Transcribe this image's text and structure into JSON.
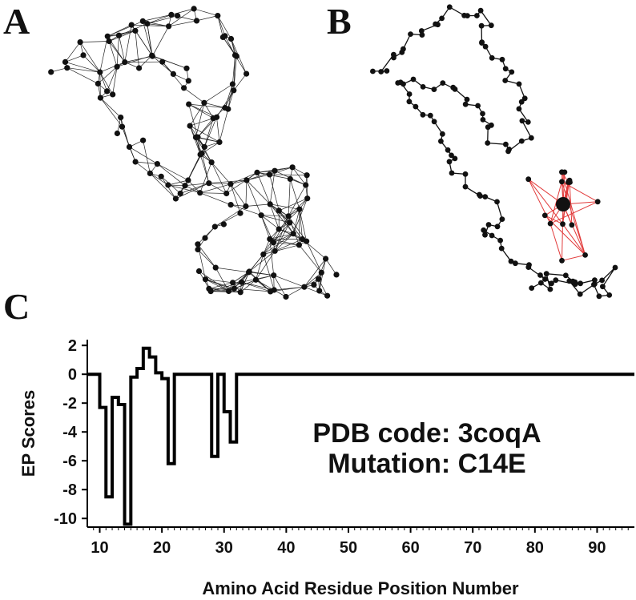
{
  "panels": {
    "a": {
      "label": "A"
    },
    "b": {
      "label": "B"
    },
    "c": {
      "label": "C"
    }
  },
  "colors": {
    "line": "#000000",
    "highlight": "#e23b3b",
    "node": "#111111"
  },
  "chart_data": {
    "type": "line",
    "title": "",
    "xlabel": "Amino Acid Residue Position Number",
    "ylabel": "EP Scores",
    "xlim": [
      8,
      96
    ],
    "ylim": [
      -10.6,
      2.4
    ],
    "xticks": [
      10,
      20,
      30,
      40,
      50,
      60,
      70,
      80,
      90
    ],
    "yticks": [
      2,
      0,
      -2,
      -4,
      -6,
      -8,
      -10
    ],
    "annotations": [
      "PDB code: 3coqA",
      "Mutation: C14E"
    ],
    "series": [
      {
        "name": "EP Scores",
        "step": true,
        "x": [
          8,
          9,
          10,
          11,
          12,
          13,
          14,
          15,
          16,
          17,
          18,
          19,
          20,
          21,
          22,
          23,
          24,
          25,
          26,
          27,
          28,
          29,
          30,
          31,
          32,
          33,
          34,
          35,
          40,
          50,
          60,
          70,
          80,
          90,
          96
        ],
        "y": [
          0,
          0,
          -2.3,
          -8.5,
          -1.6,
          -2.1,
          -10.4,
          -0.2,
          0.4,
          1.8,
          1.2,
          0.1,
          -0.3,
          -6.2,
          0,
          0,
          0,
          0,
          0,
          0,
          -5.7,
          0,
          -2.6,
          -4.7,
          0,
          0,
          0,
          0,
          0,
          0,
          0,
          0,
          0,
          0,
          0
        ]
      }
    ]
  }
}
